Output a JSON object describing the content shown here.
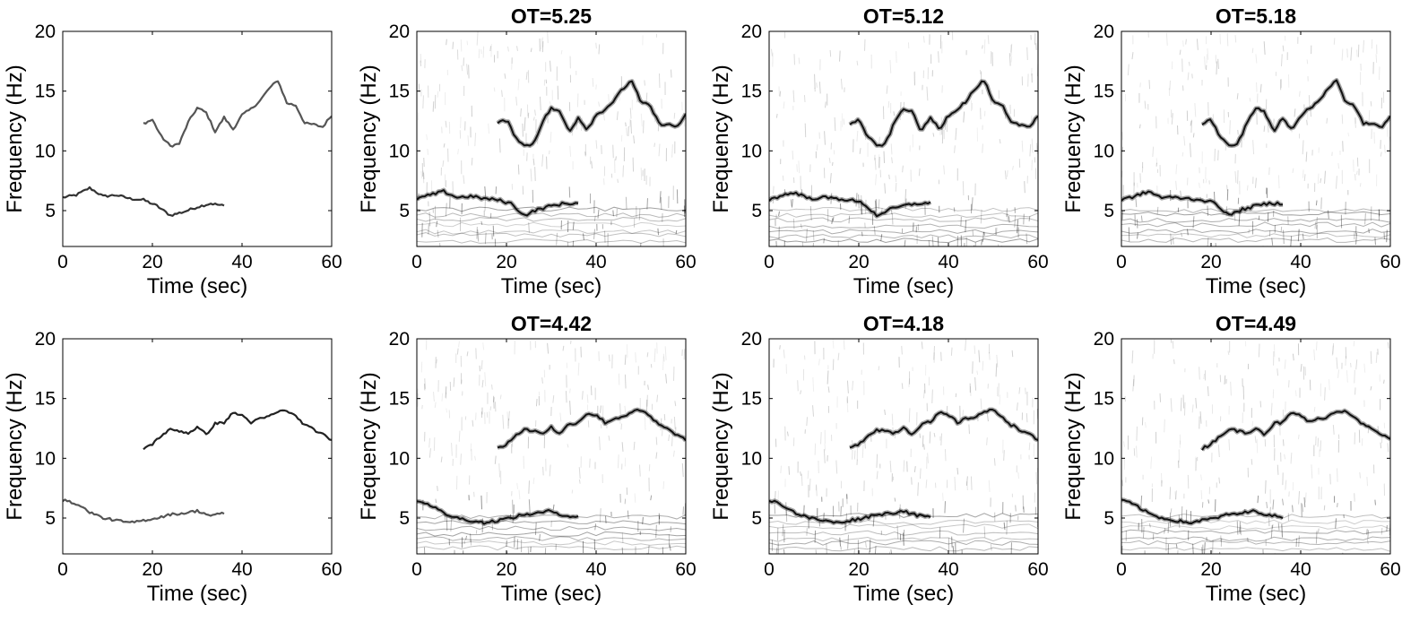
{
  "figure": {
    "rows": 2,
    "cols": 4
  },
  "chart_data": [
    {
      "type": "line",
      "title": "",
      "xlabel": "Time (sec)",
      "ylabel": "Frequency (Hz)",
      "xlim": [
        0,
        60
      ],
      "ylim": [
        2,
        20
      ],
      "xticks": [
        0,
        20,
        40,
        60
      ],
      "yticks": [
        5,
        10,
        15,
        20
      ],
      "grid": false,
      "series": [
        {
          "color": "#333333",
          "x": [
            0,
            3,
            6,
            9,
            12,
            15,
            18,
            21,
            24,
            27,
            30,
            33,
            36
          ],
          "y": [
            6.1,
            6.3,
            6.9,
            6.2,
            6.3,
            6.0,
            5.9,
            5.4,
            4.6,
            4.9,
            5.3,
            5.6,
            5.4
          ]
        },
        {
          "color": "#555555",
          "x": [
            18,
            20,
            22,
            24,
            26,
            28,
            30,
            32,
            34,
            36,
            38,
            40,
            42,
            44,
            46,
            48,
            50,
            52,
            54,
            56,
            58,
            60
          ],
          "y": [
            12.3,
            12.6,
            11.2,
            10.4,
            10.6,
            12.4,
            13.6,
            13.2,
            11.6,
            12.8,
            11.8,
            13.0,
            13.5,
            14.2,
            15.2,
            15.9,
            14.0,
            13.8,
            12.3,
            12.2,
            12.0,
            13.0
          ]
        }
      ]
    },
    {
      "type": "heatmap",
      "title": "OT=5.25",
      "xlabel": "Time (sec)",
      "ylabel": "Frequency (Hz)",
      "xlim": [
        0,
        60
      ],
      "ylim": [
        2,
        20
      ],
      "xticks": [
        0,
        20,
        40,
        60
      ],
      "yticks": [
        5,
        10,
        15,
        20
      ],
      "grid": false,
      "ridges": [
        {
          "x": [
            0,
            3,
            6,
            9,
            12,
            15,
            18,
            21,
            24,
            27,
            30,
            33,
            36
          ],
          "y": [
            6.0,
            6.3,
            6.6,
            6.1,
            6.2,
            6.0,
            5.9,
            5.6,
            4.6,
            5.1,
            5.4,
            5.6,
            5.6
          ]
        },
        {
          "x": [
            18,
            20,
            22,
            24,
            26,
            28,
            30,
            32,
            34,
            36,
            38,
            40,
            42,
            44,
            46,
            48,
            50,
            52,
            54,
            56,
            58,
            60
          ],
          "y": [
            12.3,
            12.6,
            11.2,
            10.4,
            10.6,
            12.4,
            13.6,
            13.2,
            11.6,
            12.8,
            11.8,
            13.0,
            13.5,
            14.2,
            15.2,
            15.9,
            14.0,
            13.8,
            12.3,
            12.2,
            12.0,
            13.0
          ]
        }
      ]
    },
    {
      "type": "heatmap",
      "title": "OT=5.12",
      "xlabel": "Time (sec)",
      "ylabel": "Frequency (Hz)",
      "xlim": [
        0,
        60
      ],
      "ylim": [
        2,
        20
      ],
      "xticks": [
        0,
        20,
        40,
        60
      ],
      "yticks": [
        5,
        10,
        15,
        20
      ],
      "grid": false,
      "ridges": [
        {
          "x": [
            0,
            3,
            6,
            9,
            12,
            15,
            18,
            21,
            24,
            27,
            30,
            33,
            36
          ],
          "y": [
            5.9,
            6.3,
            6.5,
            6.0,
            6.1,
            6.0,
            5.9,
            5.6,
            4.6,
            5.1,
            5.4,
            5.6,
            5.6
          ]
        },
        {
          "x": [
            18,
            20,
            22,
            24,
            26,
            28,
            30,
            32,
            34,
            36,
            38,
            40,
            42,
            44,
            46,
            48,
            50,
            52,
            54,
            56,
            58,
            60
          ],
          "y": [
            12.3,
            12.6,
            11.2,
            10.4,
            10.6,
            12.4,
            13.6,
            13.2,
            11.6,
            12.8,
            11.8,
            13.0,
            13.5,
            14.2,
            15.2,
            15.9,
            14.0,
            13.8,
            12.3,
            12.2,
            12.0,
            13.0
          ]
        }
      ]
    },
    {
      "type": "heatmap",
      "title": "OT=5.18",
      "xlabel": "Time (sec)",
      "ylabel": "Frequency (Hz)",
      "xlim": [
        0,
        60
      ],
      "ylim": [
        2,
        20
      ],
      "xticks": [
        0,
        20,
        40,
        60
      ],
      "yticks": [
        5,
        10,
        15,
        20
      ],
      "grid": false,
      "ridges": [
        {
          "x": [
            0,
            3,
            6,
            9,
            12,
            15,
            18,
            21,
            24,
            27,
            30,
            33,
            36
          ],
          "y": [
            5.9,
            6.2,
            6.6,
            6.1,
            6.1,
            6.0,
            5.9,
            5.6,
            4.6,
            5.1,
            5.4,
            5.6,
            5.6
          ]
        },
        {
          "x": [
            18,
            20,
            22,
            24,
            26,
            28,
            30,
            32,
            34,
            36,
            38,
            40,
            42,
            44,
            46,
            48,
            50,
            52,
            54,
            56,
            58,
            60
          ],
          "y": [
            12.3,
            12.6,
            11.2,
            10.4,
            10.6,
            12.4,
            13.6,
            13.2,
            11.6,
            12.8,
            11.8,
            13.0,
            13.5,
            14.2,
            15.2,
            15.9,
            14.0,
            13.8,
            12.3,
            12.2,
            12.0,
            13.0
          ]
        }
      ]
    },
    {
      "type": "line",
      "title": "",
      "xlabel": "Time (sec)",
      "ylabel": "Frequency (Hz)",
      "xlim": [
        0,
        60
      ],
      "ylim": [
        2,
        20
      ],
      "xticks": [
        0,
        20,
        40,
        60
      ],
      "yticks": [
        5,
        10,
        15,
        20
      ],
      "grid": false,
      "series": [
        {
          "color": "#555555",
          "x": [
            0,
            3,
            6,
            9,
            12,
            15,
            18,
            21,
            24,
            27,
            30,
            33,
            36
          ],
          "y": [
            6.5,
            6.2,
            5.5,
            5.0,
            4.8,
            4.6,
            4.8,
            5.0,
            5.3,
            5.4,
            5.6,
            5.2,
            5.4
          ]
        },
        {
          "color": "#222222",
          "x": [
            18,
            20,
            22,
            24,
            26,
            28,
            30,
            32,
            34,
            36,
            38,
            40,
            42,
            44,
            46,
            48,
            50,
            52,
            54,
            56,
            58,
            60
          ],
          "y": [
            10.8,
            11.2,
            11.9,
            12.4,
            12.3,
            12.1,
            12.6,
            12.0,
            12.9,
            13.0,
            13.8,
            13.6,
            13.0,
            13.3,
            13.5,
            13.9,
            14.0,
            13.5,
            12.8,
            12.4,
            12.0,
            11.5
          ]
        }
      ]
    },
    {
      "type": "heatmap",
      "title": "OT=4.42",
      "xlabel": "Time (sec)",
      "ylabel": "Frequency (Hz)",
      "xlim": [
        0,
        60
      ],
      "ylim": [
        2,
        20
      ],
      "xticks": [
        0,
        20,
        40,
        60
      ],
      "yticks": [
        5,
        10,
        15,
        20
      ],
      "grid": false,
      "ridges": [
        {
          "x": [
            0,
            3,
            6,
            9,
            12,
            15,
            18,
            21,
            24,
            27,
            30,
            33,
            36
          ],
          "y": [
            6.5,
            6.1,
            5.4,
            5.0,
            4.8,
            4.6,
            4.8,
            5.0,
            5.3,
            5.4,
            5.6,
            5.2,
            5.1
          ]
        },
        {
          "x": [
            18,
            20,
            22,
            24,
            26,
            28,
            30,
            32,
            34,
            36,
            38,
            40,
            42,
            44,
            46,
            48,
            50,
            52,
            54,
            56,
            58,
            60
          ],
          "y": [
            10.8,
            11.2,
            11.9,
            12.4,
            12.3,
            12.1,
            12.6,
            12.0,
            12.9,
            13.0,
            13.8,
            13.6,
            13.0,
            13.3,
            13.5,
            13.9,
            14.0,
            13.5,
            12.8,
            12.4,
            12.0,
            11.5
          ]
        }
      ]
    },
    {
      "type": "heatmap",
      "title": "OT=4.18",
      "xlabel": "Time (sec)",
      "ylabel": "Frequency (Hz)",
      "xlim": [
        0,
        60
      ],
      "ylim": [
        2,
        20
      ],
      "xticks": [
        0,
        20,
        40,
        60
      ],
      "yticks": [
        5,
        10,
        15,
        20
      ],
      "grid": false,
      "ridges": [
        {
          "x": [
            0,
            3,
            6,
            9,
            12,
            15,
            18,
            21,
            24,
            27,
            30,
            33,
            36
          ],
          "y": [
            6.5,
            6.1,
            5.4,
            5.0,
            4.8,
            4.6,
            4.8,
            5.0,
            5.3,
            5.4,
            5.6,
            5.2,
            5.1
          ]
        },
        {
          "x": [
            18,
            20,
            22,
            24,
            26,
            28,
            30,
            32,
            34,
            36,
            38,
            40,
            42,
            44,
            46,
            48,
            50,
            52,
            54,
            56,
            58,
            60
          ],
          "y": [
            10.8,
            11.2,
            11.9,
            12.4,
            12.3,
            12.1,
            12.6,
            12.0,
            12.9,
            13.0,
            13.8,
            13.6,
            13.0,
            13.3,
            13.5,
            13.9,
            14.0,
            13.5,
            12.8,
            12.4,
            12.0,
            11.5
          ]
        }
      ]
    },
    {
      "type": "heatmap",
      "title": "OT=4.49",
      "xlabel": "Time (sec)",
      "ylabel": "Frequency (Hz)",
      "xlim": [
        0,
        60
      ],
      "ylim": [
        2,
        20
      ],
      "xticks": [
        0,
        20,
        40,
        60
      ],
      "yticks": [
        5,
        10,
        15,
        20
      ],
      "grid": false,
      "ridges": [
        {
          "x": [
            0,
            3,
            6,
            9,
            12,
            15,
            18,
            21,
            24,
            27,
            30,
            33,
            36
          ],
          "y": [
            6.5,
            6.1,
            5.4,
            5.0,
            4.8,
            4.6,
            4.8,
            5.0,
            5.3,
            5.4,
            5.6,
            5.2,
            5.1
          ]
        },
        {
          "x": [
            18,
            20,
            22,
            24,
            26,
            28,
            30,
            32,
            34,
            36,
            38,
            40,
            42,
            44,
            46,
            48,
            50,
            52,
            54,
            56,
            58,
            60
          ],
          "y": [
            10.8,
            11.2,
            11.9,
            12.4,
            12.3,
            12.1,
            12.6,
            12.0,
            12.9,
            13.0,
            13.8,
            13.6,
            13.0,
            13.3,
            13.5,
            13.9,
            14.0,
            13.5,
            12.8,
            12.4,
            12.0,
            11.5
          ]
        }
      ]
    }
  ]
}
